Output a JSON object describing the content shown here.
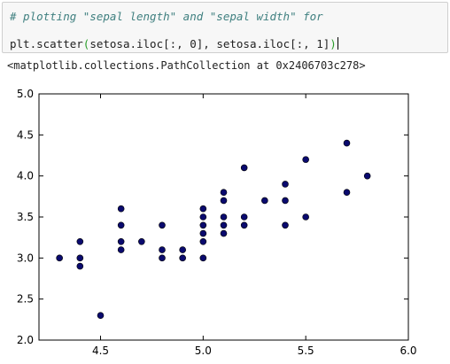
{
  "cell": {
    "comment": "# plotting \"sepal length\" and \"sepal width\" for",
    "code": {
      "fn": "plt.scatter",
      "open_paren": "(",
      "arg1_a": "setosa.iloc[:, ",
      "arg1_num": "0",
      "arg1_b": "], setosa.iloc[:, ",
      "arg2_num": "1",
      "arg2_b": "]",
      "close_paren": ")"
    },
    "output": "<matplotlib.collections.PathCollection at 0x2406703c278>"
  },
  "colors": {
    "marker": "#0a0a6e",
    "comment": "#408080",
    "paren": "#2a9d2a"
  },
  "chart_data": {
    "type": "scatter",
    "title": "",
    "xlabel": "",
    "ylabel": "",
    "xlim": [
      4.2,
      6.0
    ],
    "ylim": [
      2.0,
      5.0
    ],
    "xticks": [
      4.5,
      5.0,
      5.5,
      6.0
    ],
    "yticks": [
      2.0,
      2.5,
      3.0,
      3.5,
      4.0,
      4.5,
      5.0
    ],
    "xtick_labels": [
      "4.5",
      "5.0",
      "5.5",
      "6.0"
    ],
    "ytick_labels": [
      "2.0",
      "2.5",
      "3.0",
      "3.5",
      "4.0",
      "4.5",
      "5.0"
    ],
    "grid": false,
    "points": [
      [
        4.3,
        3.0
      ],
      [
        4.4,
        2.9
      ],
      [
        4.4,
        3.0
      ],
      [
        4.4,
        3.2
      ],
      [
        4.5,
        2.3
      ],
      [
        4.6,
        3.1
      ],
      [
        4.6,
        3.2
      ],
      [
        4.6,
        3.4
      ],
      [
        4.6,
        3.6
      ],
      [
        4.7,
        3.2
      ],
      [
        4.8,
        3.0
      ],
      [
        4.8,
        3.1
      ],
      [
        4.8,
        3.4
      ],
      [
        4.9,
        3.0
      ],
      [
        4.9,
        3.1
      ],
      [
        5.0,
        3.0
      ],
      [
        5.0,
        3.2
      ],
      [
        5.0,
        3.3
      ],
      [
        5.0,
        3.4
      ],
      [
        5.0,
        3.5
      ],
      [
        5.0,
        3.6
      ],
      [
        5.1,
        3.3
      ],
      [
        5.1,
        3.4
      ],
      [
        5.1,
        3.5
      ],
      [
        5.1,
        3.7
      ],
      [
        5.1,
        3.8
      ],
      [
        5.2,
        3.4
      ],
      [
        5.2,
        3.5
      ],
      [
        5.2,
        4.1
      ],
      [
        5.3,
        3.7
      ],
      [
        5.4,
        3.4
      ],
      [
        5.4,
        3.7
      ],
      [
        5.4,
        3.9
      ],
      [
        5.5,
        3.5
      ],
      [
        5.5,
        4.2
      ],
      [
        5.7,
        3.8
      ],
      [
        5.7,
        4.4
      ],
      [
        5.8,
        4.0
      ]
    ]
  }
}
